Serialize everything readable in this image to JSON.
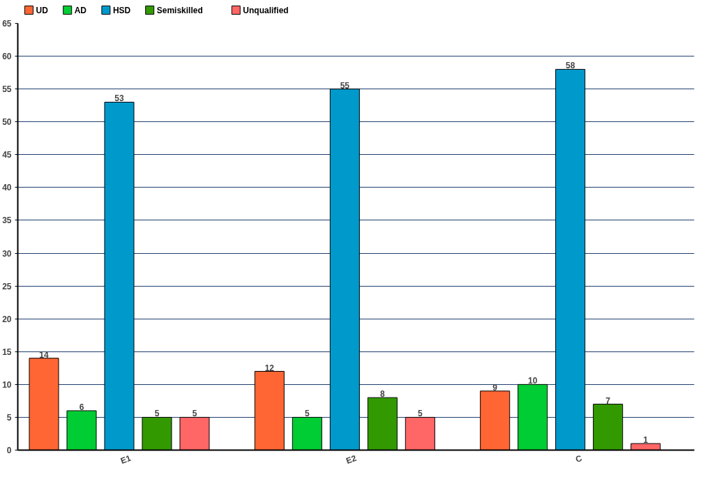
{
  "chart_data": {
    "type": "bar",
    "categories": [
      "E1",
      "E2",
      "C"
    ],
    "series": [
      {
        "name": "UD",
        "color": "#ff6633",
        "values": [
          14,
          12,
          9
        ]
      },
      {
        "name": "AD",
        "color": "#00cc33",
        "values": [
          6,
          5,
          10
        ]
      },
      {
        "name": "HSD",
        "color": "#0099cc",
        "values": [
          53,
          55,
          58
        ]
      },
      {
        "name": "Semiskilled",
        "color": "#339900",
        "values": [
          5,
          8,
          7
        ]
      },
      {
        "name": "Unqualified",
        "color": "#ff6666",
        "values": [
          5,
          5,
          1
        ]
      }
    ],
    "ylim": [
      0,
      65
    ],
    "yticks": [
      0,
      5,
      10,
      15,
      20,
      25,
      30,
      35,
      40,
      45,
      50,
      55,
      60,
      65
    ],
    "grid": "y",
    "legend": "top left",
    "data_labels": true
  }
}
